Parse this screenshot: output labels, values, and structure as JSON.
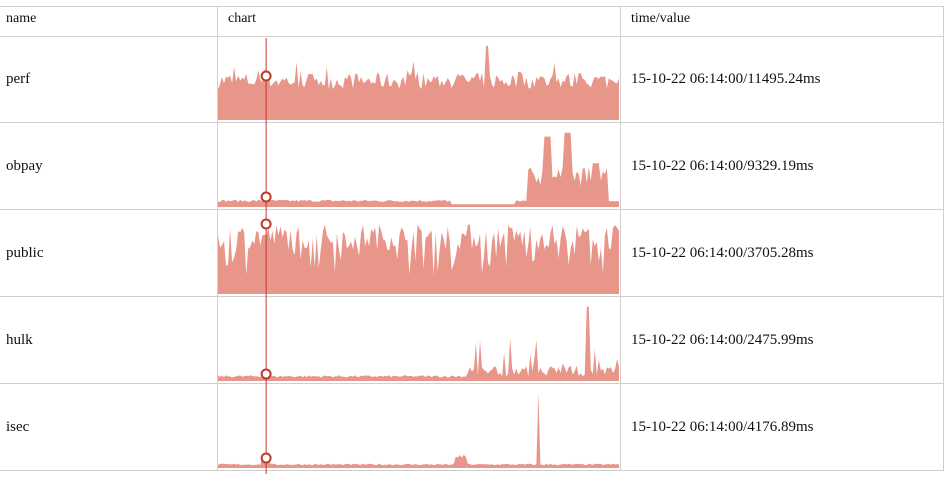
{
  "columns": {
    "name": "name",
    "chart": "chart",
    "timevalue": "time/value"
  },
  "colors": {
    "area": "#e8958a",
    "cursor": "#c0392b",
    "grid": "#cfcfcf"
  },
  "rows": [
    {
      "name": "perf",
      "time": "15-10-22 06:14:00",
      "value": "11495.24ms",
      "pattern": "dense-high"
    },
    {
      "name": "obpay",
      "time": "15-10-22 06:14:00",
      "value": "9329.19ms",
      "pattern": "low-then-burst"
    },
    {
      "name": "public",
      "time": "15-10-22 06:14:00",
      "value": "3705.28ms",
      "pattern": "dense-full"
    },
    {
      "name": "hulk",
      "time": "15-10-22 06:14:00",
      "value": "2475.99ms",
      "pattern": "low-late-spikes"
    },
    {
      "name": "isec",
      "time": "15-10-22 06:14:00",
      "value": "4176.89ms",
      "pattern": "flat-single-spike"
    }
  ],
  "cursor": {
    "position": 0.12
  }
}
